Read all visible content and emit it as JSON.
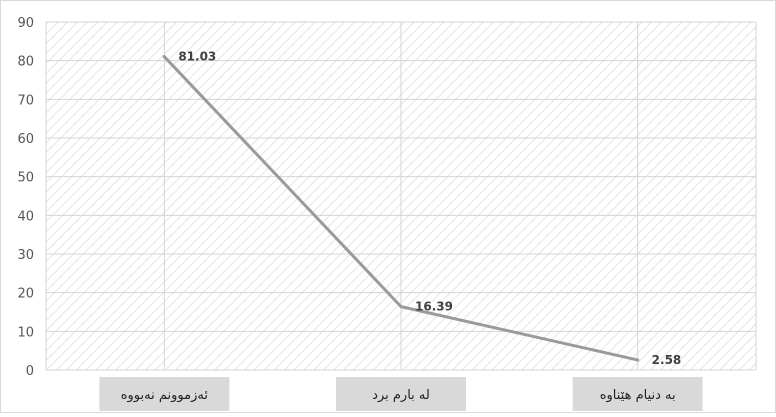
{
  "chart_data": {
    "type": "line",
    "title": "",
    "xlabel": "",
    "ylabel": "",
    "categories": [
      "ئەزموونم نەبووە",
      "لە بارم برد",
      "بە دنیام هێناوە"
    ],
    "series": [
      {
        "values": [
          81.03,
          16.39,
          2.58
        ]
      }
    ],
    "data_labels": [
      "81.03",
      "16.39",
      "2.58"
    ],
    "y_ticks": [
      "0",
      "10",
      "20",
      "30",
      "40",
      "50",
      "60",
      "70",
      "80",
      "90"
    ],
    "ylim": [
      0,
      90
    ],
    "grid": true,
    "legend": "none",
    "colors": {
      "line": "#9a9a9a",
      "grid": "#d4d4d4",
      "hatch": "#e6e6e6",
      "category_box": "#d9d9d9"
    }
  }
}
